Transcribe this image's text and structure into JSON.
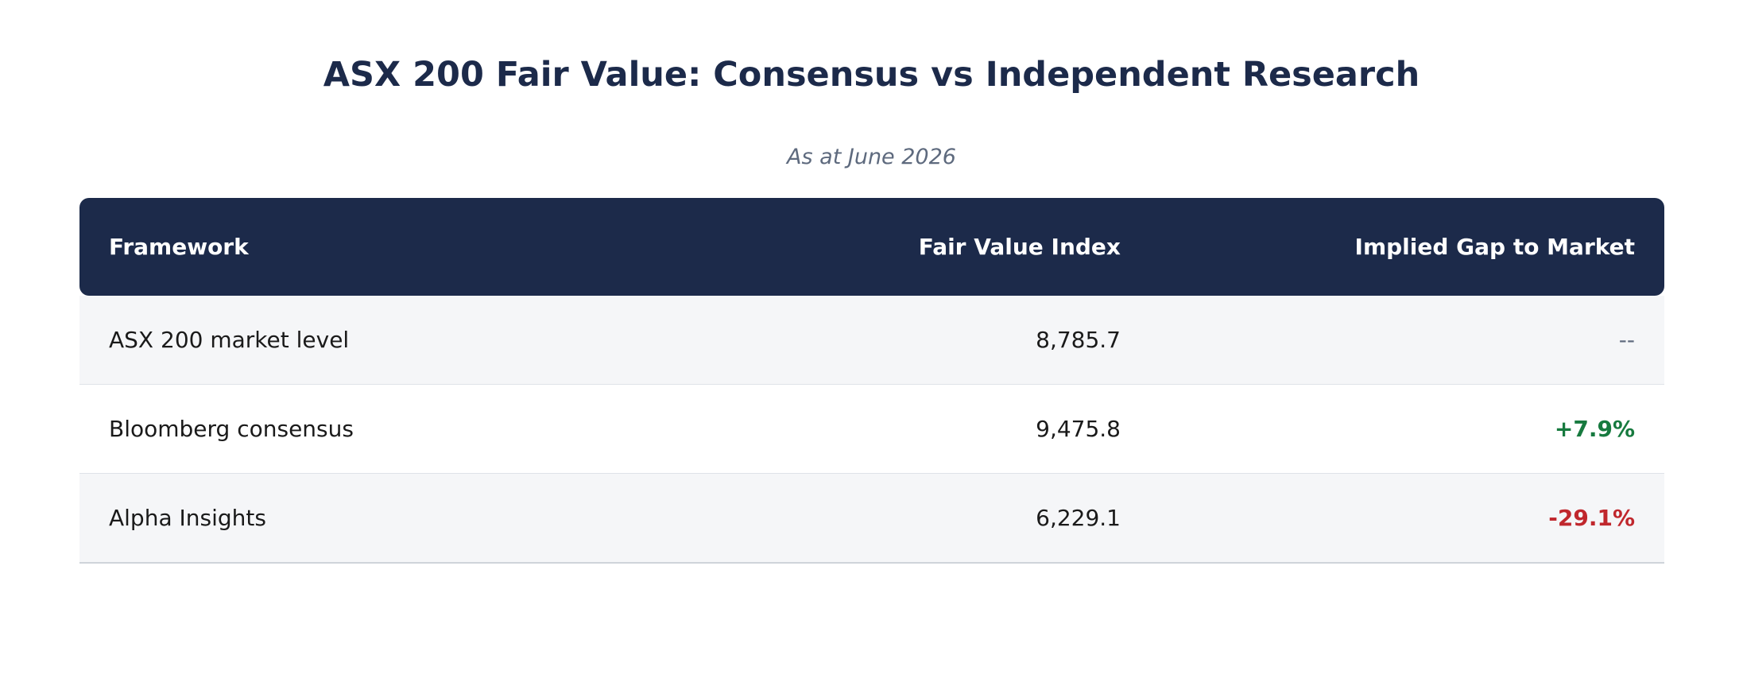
{
  "chart_data": {
    "type": "table",
    "title": "ASX 200 Fair Value: Consensus vs Independent Research",
    "subtitle": "As at June 2026",
    "columns": [
      "Framework",
      "Fair Value Index",
      "Implied Gap to Market"
    ],
    "rows": [
      {
        "framework": "ASX 200 market level",
        "fair_value_index": "8,785.7",
        "implied_gap": "--"
      },
      {
        "framework": "Bloomberg consensus",
        "fair_value_index": "9,475.8",
        "implied_gap": "+7.9%"
      },
      {
        "framework": "Alpha Insights",
        "fair_value_index": "6,229.1",
        "implied_gap": "-29.1%"
      }
    ],
    "colors": {
      "header_bg": "#1c2a4a",
      "positive": "#177a3f",
      "negative": "#c0272d",
      "neutral": "#5e6a7e"
    }
  }
}
